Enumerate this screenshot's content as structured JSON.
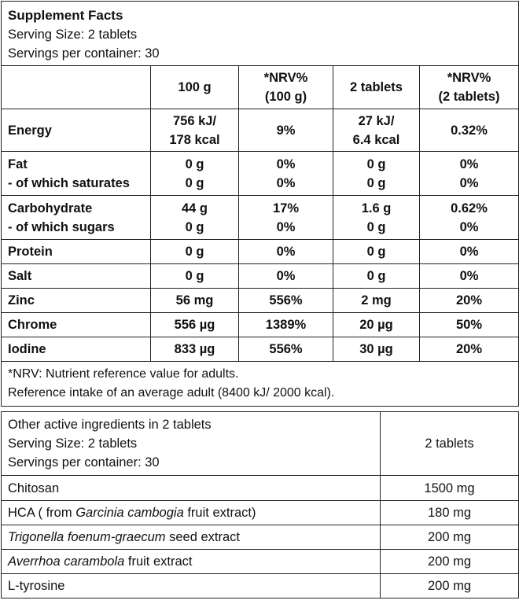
{
  "facts": {
    "title": "Supplement Facts",
    "serving_size": "Serving Size: 2 tablets",
    "servings": "Servings per container: 30",
    "columns": [
      "100 g",
      "*NRV%",
      "(100 g)",
      "2 tablets",
      "*NRV%",
      "(2 tablets)"
    ],
    "rows": [
      {
        "label": "Energy",
        "c1a": "756 kJ/",
        "c1b": "178 kcal",
        "c2": "9%",
        "c3a": "27 kJ/",
        "c3b": "6.4 kcal",
        "c4": "0.32%"
      },
      {
        "label": "Fat",
        "sublabel": "- of which saturates",
        "c1": "0 g",
        "c1s": "0 g",
        "c2": "0%",
        "c2s": "0%",
        "c3": "0 g",
        "c3s": "0 g",
        "c4": "0%",
        "c4s": "0%"
      },
      {
        "label": "Carbohydrate",
        "sublabel": "- of which sugars",
        "c1": "44 g",
        "c1s": "0 g",
        "c2": "17%",
        "c2s": "0%",
        "c3": "1.6 g",
        "c3s": "0 g",
        "c4": "0.62%",
        "c4s": "0%"
      },
      {
        "label": "Protein",
        "c1": "0 g",
        "c2": "0%",
        "c3": "0 g",
        "c4": "0%"
      },
      {
        "label": "Salt",
        "c1": "0 g",
        "c2": "0%",
        "c3": "0 g",
        "c4": "0%"
      },
      {
        "label": "Zinc",
        "c1": "56 mg",
        "c2": "556%",
        "c3": "2 mg",
        "c4": "20%"
      },
      {
        "label": "Chrome",
        "c1": "556 µg",
        "c2": "1389%",
        "c3": "20 µg",
        "c4": "50%"
      },
      {
        "label": "Iodine",
        "c1": "833 µg",
        "c2": "556%",
        "c3": "30 µg",
        "c4": "20%"
      }
    ],
    "footnote1": "*NRV: Nutrient reference value for adults.",
    "footnote2": "Reference intake of an average adult (8400 kJ/ 2000 kcal)."
  },
  "other": {
    "heading1": "Other active ingredients in 2 tablets",
    "heading2": "Serving Size: 2 tablets",
    "heading3": "Servings per container: 30",
    "column": "2 tablets",
    "rows": [
      {
        "pre": "Chitosan",
        "italic": "",
        "post": "",
        "value": "1500 mg"
      },
      {
        "pre": "HCA ( from ",
        "italic": "Garcinia cambogia",
        "post": " fruit extract)",
        "value": "180 mg"
      },
      {
        "pre": "",
        "italic": "Trigonella foenum-graecum",
        "post": " seed extract",
        "value": "200 mg"
      },
      {
        "pre": "",
        "italic": "Averrhoa carambola",
        "post": " fruit extract",
        "value": "200 mg"
      },
      {
        "pre": "L-tyrosine",
        "italic": "",
        "post": "",
        "value": "200 mg"
      }
    ]
  }
}
